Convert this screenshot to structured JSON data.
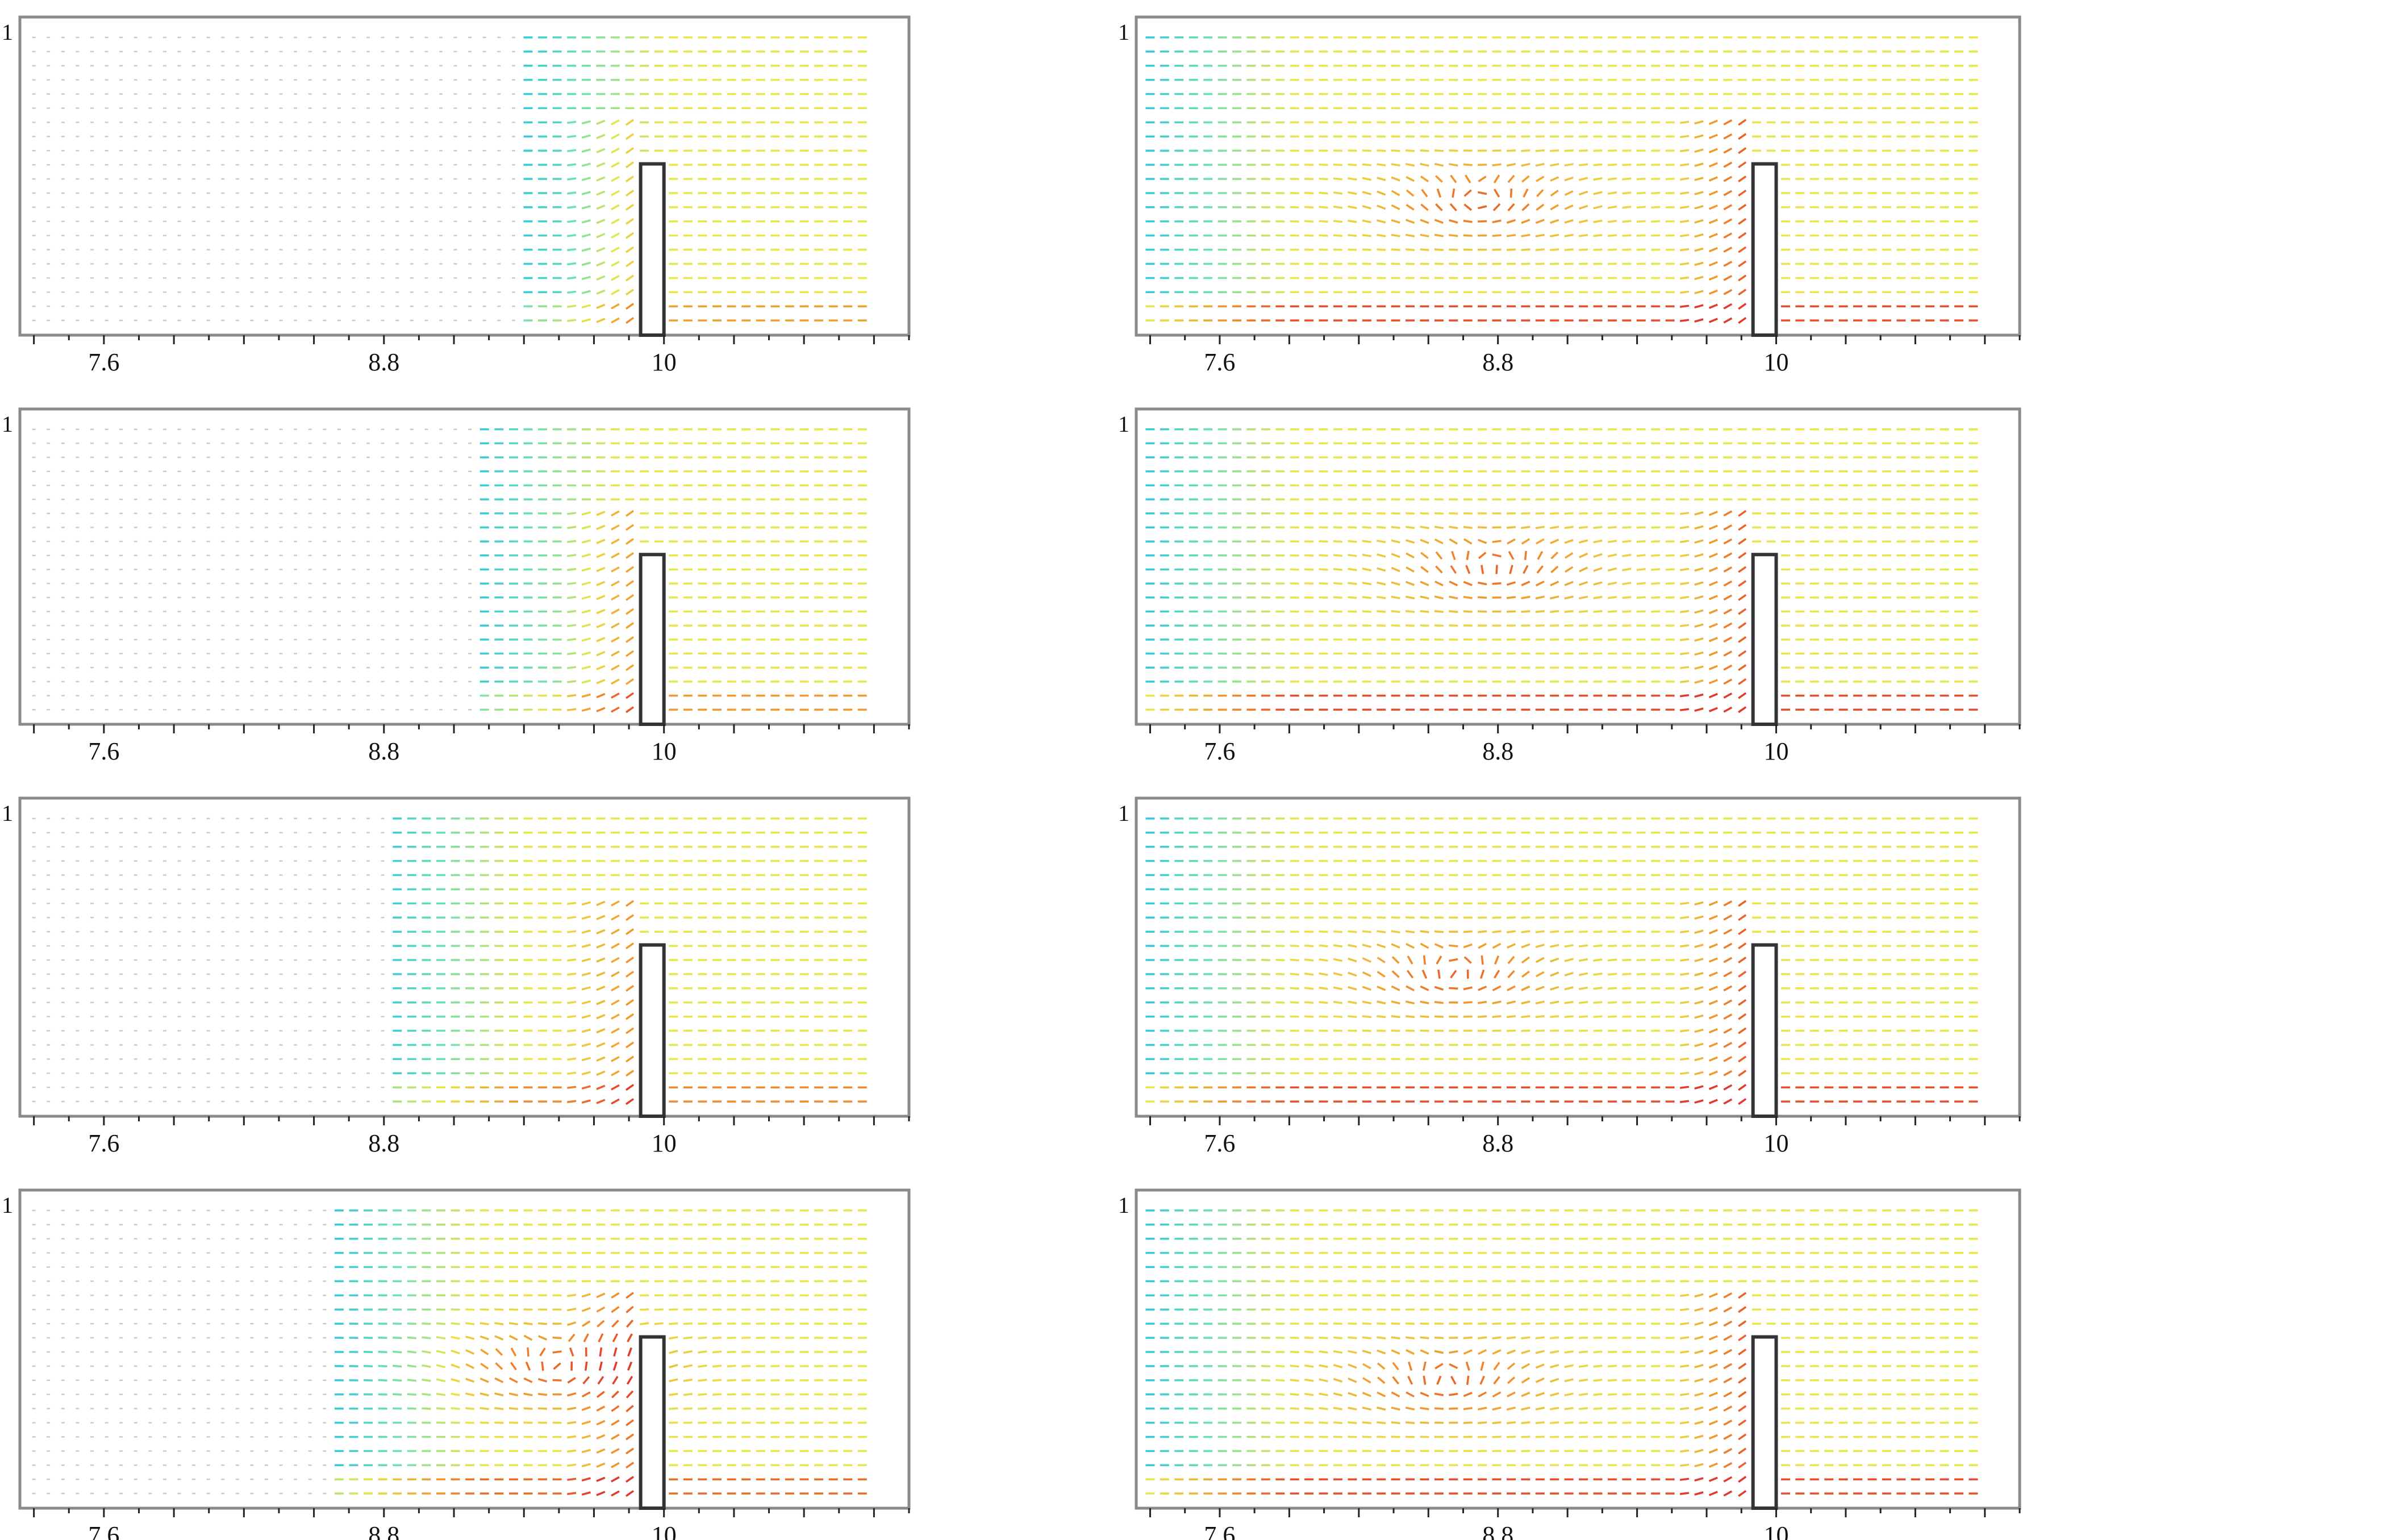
{
  "figure": {
    "layout": "4 rows x 2 columns of velocity-vector field panels",
    "colorscale": [
      "#3b3bd1",
      "#22c3e6",
      "#6fe0b0",
      "#e8e64a",
      "#f0902c",
      "#e23a2a"
    ],
    "obstacle_color": "#333333",
    "frame_color": "#8a8a8a"
  },
  "chart_data": [
    {
      "type": "quiver",
      "panel": "row1-left",
      "y_tick_label": "1",
      "x_ticks": [
        7.6,
        8.8,
        10
      ],
      "xlim": [
        7.24,
        11.05
      ],
      "ylim": [
        0,
        1
      ],
      "obstacle": {
        "x": [
          9.9,
          10.0
        ],
        "y": [
          0,
          0.55
        ]
      },
      "active_region_x": [
        9.4,
        10.85
      ],
      "max_speed": 0.45
    },
    {
      "type": "quiver",
      "panel": "row1-right",
      "y_tick_label": "1",
      "x_ticks": [
        7.6,
        8.8,
        10
      ],
      "xlim": [
        7.24,
        11.05
      ],
      "ylim": [
        0,
        1
      ],
      "obstacle": {
        "x": [
          9.9,
          10.0
        ],
        "y": [
          0,
          0.55
        ]
      },
      "active_region_x": [
        7.3,
        10.85
      ],
      "vortex_center": [
        8.72,
        0.42
      ],
      "max_speed": 1.0
    },
    {
      "type": "quiver",
      "panel": "row2-left",
      "y_tick_label": "1",
      "x_ticks": [
        7.6,
        8.8,
        10
      ],
      "xlim": [
        7.24,
        11.05
      ],
      "ylim": [
        0,
        1
      ],
      "obstacle": {
        "x": [
          9.9,
          10.0
        ],
        "y": [
          0,
          0.55
        ]
      },
      "active_region_x": [
        9.2,
        10.85
      ],
      "max_speed": 0.5
    },
    {
      "type": "quiver",
      "panel": "row2-right",
      "y_tick_label": "1",
      "x_ticks": [
        7.6,
        8.8,
        10
      ],
      "xlim": [
        7.24,
        11.05
      ],
      "ylim": [
        0,
        1
      ],
      "obstacle": {
        "x": [
          9.9,
          10.0
        ],
        "y": [
          0,
          0.55
        ]
      },
      "active_region_x": [
        7.3,
        10.85
      ],
      "vortex_center": [
        8.78,
        0.5
      ],
      "max_speed": 1.0
    },
    {
      "type": "quiver",
      "panel": "row3-left",
      "y_tick_label": "1",
      "x_ticks": [
        7.6,
        8.8,
        10
      ],
      "xlim": [
        7.24,
        11.05
      ],
      "ylim": [
        0,
        1
      ],
      "obstacle": {
        "x": [
          9.9,
          10.0
        ],
        "y": [
          0,
          0.55
        ]
      },
      "active_region_x": [
        8.8,
        10.85
      ],
      "max_speed": 0.6
    },
    {
      "type": "quiver",
      "panel": "row3-right",
      "y_tick_label": "1",
      "x_ticks": [
        7.6,
        8.8,
        10
      ],
      "xlim": [
        7.24,
        11.05
      ],
      "ylim": [
        0,
        1
      ],
      "obstacle": {
        "x": [
          9.9,
          10.0
        ],
        "y": [
          0,
          0.55
        ]
      },
      "active_region_x": [
        7.3,
        10.85
      ],
      "vortex_center": [
        8.62,
        0.45
      ],
      "max_speed": 1.0
    },
    {
      "type": "quiver",
      "panel": "row4-left",
      "y_tick_label": "1",
      "x_ticks": [
        7.6,
        8.8,
        10
      ],
      "xlim": [
        7.24,
        11.05
      ],
      "ylim": [
        0,
        1
      ],
      "obstacle": {
        "x": [
          9.9,
          10.0
        ],
        "y": [
          0,
          0.55
        ]
      },
      "active_region_x": [
        8.6,
        10.85
      ],
      "vortex_center": [
        9.55,
        0.45
      ],
      "max_speed": 0.8
    },
    {
      "type": "quiver",
      "panel": "row4-right",
      "y_tick_label": "1",
      "x_ticks": [
        7.6,
        8.8,
        10
      ],
      "xlim": [
        7.24,
        11.05
      ],
      "ylim": [
        0,
        1
      ],
      "obstacle": {
        "x": [
          9.9,
          10.0
        ],
        "y": [
          0,
          0.55
        ]
      },
      "active_region_x": [
        7.3,
        10.85
      ],
      "vortex_center": [
        8.58,
        0.4
      ],
      "max_speed": 1.0
    }
  ]
}
